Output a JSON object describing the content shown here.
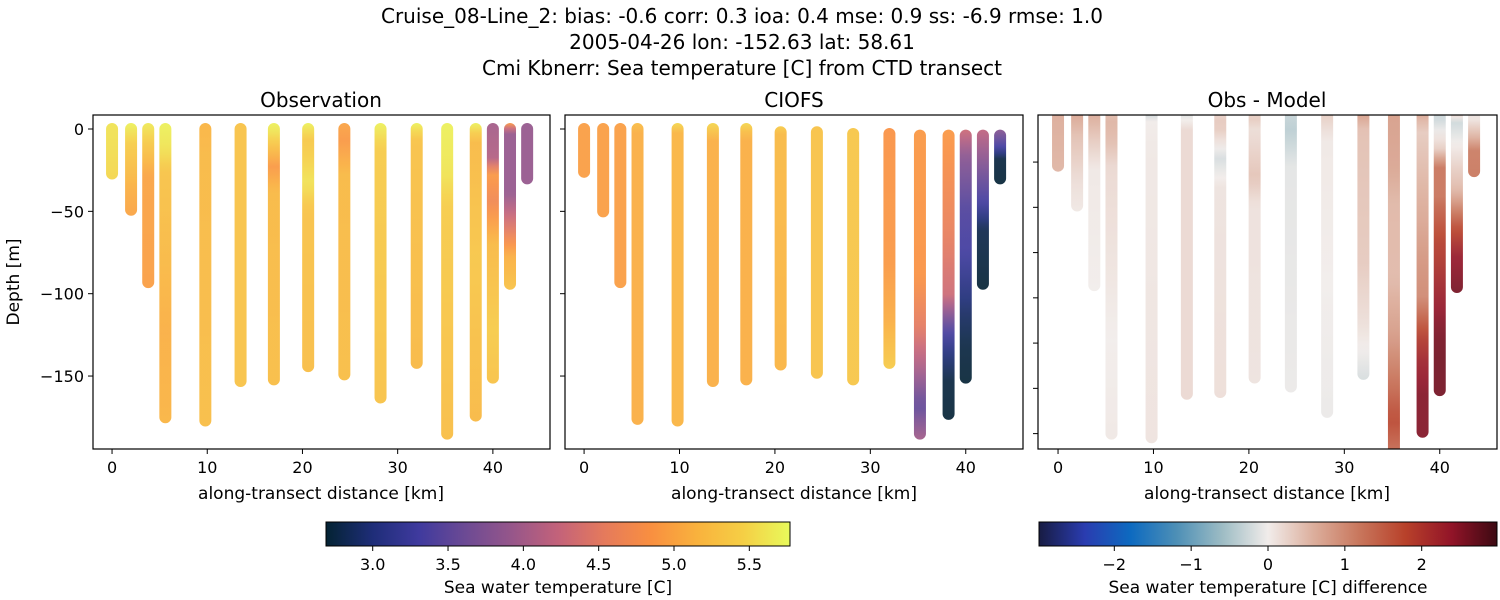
{
  "title_lines": [
    "Cruise_08-Line_2: bias: -0.6  corr: 0.3  ioa: 0.4  mse: 0.9  ss: -6.9  rmse: 1.0",
    "2005-04-26 lon: -152.63 lat: 58.61",
    "Cmi Kbnerr: Sea temperature [C] from CTD transect"
  ],
  "chart_data": [
    {
      "type": "scatter",
      "title": "Observation",
      "xlabel": "along-transect distance [km]",
      "ylabel": "Depth [m]",
      "xlim": [
        -2,
        46
      ],
      "ylim": [
        8.5,
        -194.3
      ],
      "xticks": [
        0,
        10,
        20,
        30,
        40
      ],
      "yticks": [
        0,
        -50,
        -100,
        -150
      ],
      "ytick_labels": [
        "0",
        "−50",
        "−100",
        "−150"
      ],
      "colormap": "thermal",
      "profiles": [
        {
          "x": 0,
          "points": [
            [
              0,
              5.6
            ],
            [
              -27,
              5.5
            ]
          ]
        },
        {
          "x": 2,
          "points": [
            [
              0,
              5.7
            ],
            [
              -12,
              5.4
            ],
            [
              -35,
              5.1
            ],
            [
              -49,
              5.0
            ]
          ]
        },
        {
          "x": 3.8,
          "points": [
            [
              0,
              5.65
            ],
            [
              -15,
              5.3
            ],
            [
              -30,
              5.0
            ],
            [
              -93,
              4.95
            ]
          ]
        },
        {
          "x": 5.6,
          "points": [
            [
              0,
              5.7
            ],
            [
              -15,
              5.6
            ],
            [
              -30,
              5.3
            ],
            [
              -80,
              5.2
            ],
            [
              -120,
              5.1
            ],
            [
              -175,
              5.15
            ]
          ]
        },
        {
          "x": 9.8,
          "points": [
            [
              0,
              5.15
            ],
            [
              -20,
              5.2
            ],
            [
              -177,
              5.25
            ]
          ]
        },
        {
          "x": 13.5,
          "points": [
            [
              0,
              5.3
            ],
            [
              -153,
              5.3
            ]
          ]
        },
        {
          "x": 17,
          "points": [
            [
              0,
              5.7
            ],
            [
              -5,
              5.6
            ],
            [
              -25,
              4.9
            ],
            [
              -40,
              5.2
            ],
            [
              -152,
              5.25
            ]
          ]
        },
        {
          "x": 20.6,
          "points": [
            [
              0,
              5.7
            ],
            [
              -10,
              5.35
            ],
            [
              -35,
              5.6
            ],
            [
              -50,
              5.3
            ],
            [
              -144,
              5.25
            ]
          ]
        },
        {
          "x": 24.4,
          "points": [
            [
              0,
              5.0
            ],
            [
              -10,
              4.9
            ],
            [
              -30,
              5.2
            ],
            [
              -149,
              5.25
            ]
          ]
        },
        {
          "x": 28.2,
          "points": [
            [
              0,
              5.7
            ],
            [
              -15,
              5.4
            ],
            [
              -163,
              5.3
            ]
          ]
        },
        {
          "x": 32,
          "points": [
            [
              0,
              5.7
            ],
            [
              -10,
              5.3
            ],
            [
              -142,
              5.2
            ]
          ]
        },
        {
          "x": 35.2,
          "points": [
            [
              0,
              5.7
            ],
            [
              -30,
              5.6
            ],
            [
              -50,
              5.4
            ],
            [
              -100,
              5.35
            ],
            [
              -185,
              5.25
            ]
          ]
        },
        {
          "x": 38.2,
          "points": [
            [
              0,
              5.7
            ],
            [
              -10,
              5.2
            ],
            [
              -80,
              5.35
            ],
            [
              -174,
              5.2
            ]
          ]
        },
        {
          "x": 40,
          "points": [
            [
              0,
              4.0
            ],
            [
              -20,
              4.1
            ],
            [
              -30,
              4.9
            ],
            [
              -45,
              4.7
            ],
            [
              -70,
              5.2
            ],
            [
              -120,
              5.4
            ],
            [
              -151,
              5.3
            ]
          ]
        },
        {
          "x": 41.8,
          "points": [
            [
              0,
              4.9
            ],
            [
              -5,
              3.9
            ],
            [
              -40,
              3.9
            ],
            [
              -60,
              4.5
            ],
            [
              -75,
              5.1
            ],
            [
              -94,
              5.3
            ]
          ]
        },
        {
          "x": 43.6,
          "points": [
            [
              0,
              3.9
            ],
            [
              -30,
              3.9
            ]
          ]
        }
      ]
    },
    {
      "type": "scatter",
      "title": "CIOFS",
      "xlabel": "along-transect distance [km]",
      "xlim": [
        -2,
        46
      ],
      "ylim": [
        8.5,
        -194.3
      ],
      "xticks": [
        0,
        10,
        20,
        30,
        40
      ],
      "yticks": [
        0,
        -50,
        -100,
        -150
      ],
      "colormap": "thermal",
      "profiles": [
        {
          "x": 0,
          "points": [
            [
              0,
              4.95
            ],
            [
              -26,
              4.95
            ]
          ]
        },
        {
          "x": 2,
          "points": [
            [
              0,
              4.95
            ],
            [
              -50,
              4.95
            ]
          ]
        },
        {
          "x": 3.8,
          "points": [
            [
              0,
              4.95
            ],
            [
              -93,
              4.95
            ]
          ]
        },
        {
          "x": 5.6,
          "points": [
            [
              0,
              5.25
            ],
            [
              -5,
              5.1
            ],
            [
              -176,
              5.1
            ]
          ]
        },
        {
          "x": 9.8,
          "points": [
            [
              0,
              5.5
            ],
            [
              -5,
              5.15
            ],
            [
              -177,
              5.15
            ]
          ]
        },
        {
          "x": 13.5,
          "points": [
            [
              0,
              5.5
            ],
            [
              -10,
              5.1
            ],
            [
              -153,
              5.1
            ]
          ]
        },
        {
          "x": 17,
          "points": [
            [
              0,
              5.5
            ],
            [
              -8,
              5.1
            ],
            [
              -152,
              5.1
            ]
          ]
        },
        {
          "x": 20.6,
          "points": [
            [
              -2,
              5.4
            ],
            [
              -5,
              5.2
            ],
            [
              -143,
              5.15
            ]
          ]
        },
        {
          "x": 24.4,
          "points": [
            [
              -2,
              5.3
            ],
            [
              -148,
              5.3
            ]
          ]
        },
        {
          "x": 28.2,
          "points": [
            [
              -3,
              5.35
            ],
            [
              -152,
              5.35
            ]
          ]
        },
        {
          "x": 32,
          "points": [
            [
              -3,
              4.85
            ],
            [
              -80,
              4.9
            ],
            [
              -115,
              5.1
            ],
            [
              -142,
              5.4
            ]
          ]
        },
        {
          "x": 35.2,
          "points": [
            [
              -4,
              4.9
            ],
            [
              -90,
              4.85
            ],
            [
              -120,
              4.5
            ],
            [
              -145,
              4.0
            ],
            [
              -165,
              3.5
            ],
            [
              -185,
              4.0
            ]
          ]
        },
        {
          "x": 38.2,
          "points": [
            [
              -4,
              4.9
            ],
            [
              -60,
              4.6
            ],
            [
              -100,
              4.3
            ],
            [
              -120,
              3.4
            ],
            [
              -135,
              3.0
            ],
            [
              -150,
              2.75
            ],
            [
              -173,
              2.7
            ]
          ]
        },
        {
          "x": 40,
          "points": [
            [
              -4,
              4.3
            ],
            [
              -20,
              3.8
            ],
            [
              -50,
              3.4
            ],
            [
              -75,
              3.3
            ],
            [
              -110,
              2.9
            ],
            [
              -130,
              2.75
            ],
            [
              -151,
              2.7
            ]
          ]
        },
        {
          "x": 41.8,
          "points": [
            [
              -4,
              4.2
            ],
            [
              -30,
              3.6
            ],
            [
              -45,
              3.3
            ],
            [
              -60,
              2.8
            ],
            [
              -94,
              2.7
            ]
          ]
        },
        {
          "x": 43.6,
          "points": [
            [
              -4,
              3.8
            ],
            [
              -12,
              3.3
            ],
            [
              -18,
              2.75
            ],
            [
              -30,
              2.7
            ]
          ]
        }
      ]
    },
    {
      "type": "scatter",
      "title": "Obs - Model",
      "xlabel": "along-transect distance [km]",
      "xlim": [
        -2.1,
        46
      ],
      "ylim": [
        1,
        -183.5
      ],
      "xticks": [
        0,
        10,
        20,
        30,
        40
      ],
      "yticks": [
        -25,
        -50,
        -75,
        -100,
        -125,
        -150,
        -175
      ],
      "colormap": "balance",
      "derived_from": "Observation minus CIOFS"
    }
  ],
  "colorbars": [
    {
      "label": "Sea water temperature [C]",
      "range": [
        2.69,
        5.77
      ],
      "ticks": [
        3.0,
        3.5,
        4.0,
        4.5,
        5.0,
        5.5
      ],
      "tick_labels": [
        "3.0",
        "3.5",
        "4.0",
        "4.5",
        "5.0",
        "5.5"
      ]
    },
    {
      "label": "Sea water temperature [C] difference",
      "range": [
        -2.98,
        2.98
      ],
      "ticks": [
        -2,
        -1,
        0,
        1,
        2
      ],
      "tick_labels": [
        "−2",
        "−1",
        "0",
        "1",
        "2"
      ]
    }
  ],
  "colormaps": {
    "thermal": [
      "#042333",
      "#1e2d78",
      "#3f3a9e",
      "#6c4a94",
      "#96568a",
      "#c3627a",
      "#e57a5c",
      "#f98f40",
      "#f9b23d",
      "#f5cf45",
      "#e8fa5b"
    ],
    "balance": [
      "#181c43",
      "#2a3cb0",
      "#0d6ac0",
      "#4d8fb6",
      "#9dbcc4",
      "#f1ecea",
      "#dcae9c",
      "#c8765c",
      "#b8412a",
      "#921428",
      "#3c0912"
    ]
  }
}
